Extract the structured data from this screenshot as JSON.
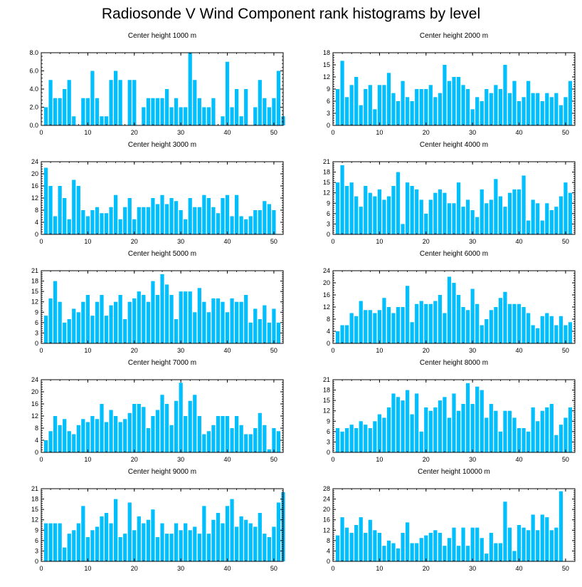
{
  "title": "Radiosonde V Wind Component rank histograms by level",
  "bar_color": "#00bfff",
  "chart_data": [
    {
      "type": "bar",
      "title": "Center height 1000 m",
      "xlabel": "",
      "ylabel": "",
      "ylim": [
        0,
        8
      ],
      "yticks": [
        "0.0",
        "2.0",
        "4.0",
        "6.0",
        "8.0"
      ],
      "ytick_values": [
        0,
        2,
        4,
        6,
        8
      ],
      "xlim": [
        0,
        52
      ],
      "xticks": [
        "0",
        "10",
        "20",
        "30",
        "40",
        "50"
      ],
      "xtick_values": [
        0,
        10,
        20,
        30,
        40,
        50
      ],
      "values": [
        2,
        5,
        3,
        3,
        4,
        5,
        1,
        0,
        3,
        3,
        6,
        3,
        1,
        1,
        5,
        6,
        5,
        0,
        5,
        5,
        0,
        2,
        3,
        3,
        3,
        3,
        4,
        2,
        3,
        2,
        2,
        8,
        5,
        3,
        2,
        2,
        3,
        0,
        1,
        7,
        2,
        4,
        1,
        4,
        0,
        2,
        5,
        3,
        2,
        3,
        6,
        1
      ]
    },
    {
      "type": "bar",
      "title": "Center height 2000 m",
      "xlabel": "",
      "ylabel": "",
      "ylim": [
        0,
        18
      ],
      "yticks": [
        "0",
        "3",
        "6",
        "9",
        "12",
        "15",
        "18"
      ],
      "ytick_values": [
        0,
        3,
        6,
        9,
        12,
        15,
        18
      ],
      "xlim": [
        0,
        52
      ],
      "xticks": [
        "0",
        "10",
        "20",
        "30",
        "40",
        "50"
      ],
      "xtick_values": [
        0,
        10,
        20,
        30,
        40,
        50
      ],
      "values": [
        9,
        16,
        7,
        10,
        12,
        5,
        9,
        10,
        4,
        10,
        10,
        13,
        8,
        6,
        11,
        7,
        6,
        9,
        9,
        9,
        10,
        7,
        8,
        15,
        11,
        12,
        12,
        10,
        9,
        4,
        7,
        6,
        9,
        8,
        10,
        9,
        15,
        8,
        11,
        6,
        7,
        11,
        8,
        8,
        6,
        8,
        7,
        8,
        5,
        7,
        11
      ]
    },
    {
      "type": "bar",
      "title": "Center height 3000 m",
      "xlabel": "",
      "ylabel": "",
      "ylim": [
        0,
        24
      ],
      "yticks": [
        "0",
        "4",
        "8",
        "12",
        "16",
        "20",
        "24"
      ],
      "ytick_values": [
        0,
        4,
        8,
        12,
        16,
        20,
        24
      ],
      "xlim": [
        0,
        52
      ],
      "xticks": [
        "0",
        "10",
        "20",
        "30",
        "40",
        "50"
      ],
      "xtick_values": [
        0,
        10,
        20,
        30,
        40,
        50
      ],
      "values": [
        22,
        16,
        6,
        16,
        12,
        5,
        18,
        16,
        8,
        6,
        8,
        9,
        7,
        7,
        9,
        13,
        5,
        9,
        12,
        5,
        9,
        9,
        9,
        12,
        10,
        13,
        10,
        12,
        11,
        8,
        5,
        12,
        9,
        9,
        13,
        12,
        9,
        7,
        12,
        13,
        6,
        13,
        6,
        5,
        6,
        8,
        8,
        11,
        10,
        8
      ]
    },
    {
      "type": "bar",
      "title": "Center height 4000 m",
      "xlabel": "",
      "ylabel": "",
      "ylim": [
        0,
        21
      ],
      "yticks": [
        "0",
        "3",
        "6",
        "9",
        "12",
        "15",
        "18",
        "21"
      ],
      "ytick_values": [
        0,
        3,
        6,
        9,
        12,
        15,
        18,
        21
      ],
      "xlim": [
        0,
        52
      ],
      "xticks": [
        "0",
        "10",
        "20",
        "30",
        "40",
        "50"
      ],
      "xtick_values": [
        0,
        10,
        20,
        30,
        40,
        50
      ],
      "values": [
        15,
        20,
        14,
        15,
        11,
        8,
        14,
        12,
        11,
        13,
        10,
        11,
        14,
        18,
        3,
        15,
        14,
        13,
        10,
        6,
        10,
        12,
        13,
        12,
        9,
        9,
        15,
        8,
        10,
        7,
        5,
        13,
        9,
        10,
        16,
        11,
        8,
        12,
        13,
        13,
        17,
        4,
        10,
        9,
        4,
        9,
        7,
        8,
        11,
        15,
        12
      ]
    },
    {
      "type": "bar",
      "title": "Center height 5000 m",
      "xlabel": "",
      "ylabel": "",
      "ylim": [
        0,
        21
      ],
      "yticks": [
        "0",
        "3",
        "6",
        "9",
        "12",
        "15",
        "18",
        "21"
      ],
      "ytick_values": [
        0,
        3,
        6,
        9,
        12,
        15,
        18,
        21
      ],
      "xlim": [
        0,
        52
      ],
      "xticks": [
        "0",
        "10",
        "20",
        "30",
        "40",
        "50"
      ],
      "xtick_values": [
        0,
        10,
        20,
        30,
        40,
        50
      ],
      "values": [
        8,
        13,
        18,
        12,
        6,
        7,
        10,
        9,
        12,
        14,
        8,
        12,
        14,
        8,
        11,
        12,
        14,
        7,
        12,
        13,
        15,
        14,
        12,
        18,
        14,
        20,
        17,
        14,
        7,
        15,
        15,
        15,
        9,
        16,
        12,
        9,
        13,
        13,
        12,
        9,
        13,
        12,
        12,
        14,
        6,
        10,
        7,
        11,
        6,
        10,
        6
      ]
    },
    {
      "type": "bar",
      "title": "Center height 6000 m",
      "xlabel": "",
      "ylabel": "",
      "ylim": [
        0,
        24
      ],
      "yticks": [
        "0",
        "4",
        "8",
        "12",
        "16",
        "20",
        "24"
      ],
      "ytick_values": [
        0,
        4,
        8,
        12,
        16,
        20,
        24
      ],
      "xlim": [
        0,
        52
      ],
      "xticks": [
        "0",
        "10",
        "20",
        "30",
        "40",
        "50"
      ],
      "xtick_values": [
        0,
        10,
        20,
        30,
        40,
        50
      ],
      "values": [
        4,
        6,
        6,
        10,
        9,
        14,
        11,
        11,
        10,
        11,
        15,
        12,
        10,
        12,
        12,
        19,
        7,
        13,
        14,
        13,
        13,
        14,
        16,
        10,
        22,
        20,
        16,
        12,
        11,
        18,
        13,
        6,
        8,
        11,
        12,
        15,
        17,
        13,
        13,
        13,
        12,
        10,
        6,
        5,
        9,
        10,
        9,
        6,
        9,
        6,
        7
      ]
    },
    {
      "type": "bar",
      "title": "Center height 7000 m",
      "xlabel": "",
      "ylabel": "",
      "ylim": [
        0,
        24
      ],
      "yticks": [
        "0",
        "4",
        "8",
        "12",
        "16",
        "20",
        "24"
      ],
      "ytick_values": [
        0,
        4,
        8,
        12,
        16,
        20,
        24
      ],
      "xlim": [
        0,
        52
      ],
      "xticks": [
        "0",
        "10",
        "20",
        "30",
        "40",
        "50"
      ],
      "xtick_values": [
        0,
        10,
        20,
        30,
        40,
        50
      ],
      "values": [
        4,
        7,
        12,
        9,
        11,
        7,
        6,
        9,
        11,
        10,
        12,
        11,
        16,
        10,
        14,
        12,
        10,
        11,
        13,
        16,
        16,
        15,
        8,
        12,
        14,
        19,
        16,
        9,
        17,
        23,
        12,
        17,
        19,
        12,
        6,
        7,
        9,
        12,
        12,
        12,
        8,
        12,
        9,
        6,
        6,
        8,
        13,
        9,
        1,
        8,
        7
      ]
    },
    {
      "type": "bar",
      "title": "Center height 8000 m",
      "xlabel": "",
      "ylabel": "",
      "ylim": [
        0,
        21
      ],
      "yticks": [
        "0",
        "3",
        "6",
        "9",
        "12",
        "15",
        "18",
        "21"
      ],
      "ytick_values": [
        0,
        3,
        6,
        9,
        12,
        15,
        18,
        21
      ],
      "xlim": [
        0,
        52
      ],
      "xticks": [
        "0",
        "10",
        "20",
        "30",
        "40",
        "50"
      ],
      "xtick_values": [
        0,
        10,
        20,
        30,
        40,
        50
      ],
      "values": [
        7,
        6,
        7,
        8,
        7,
        9,
        8,
        7,
        9,
        11,
        10,
        13,
        17,
        16,
        15,
        18,
        11,
        17,
        6,
        13,
        12,
        13,
        15,
        16,
        10,
        17,
        12,
        14,
        20,
        14,
        19,
        18,
        10,
        14,
        12,
        6,
        12,
        12,
        10,
        7,
        7,
        6,
        13,
        9,
        12,
        13,
        14,
        5,
        8,
        10,
        13
      ]
    },
    {
      "type": "bar",
      "title": "Center height 9000 m",
      "xlabel": "",
      "ylabel": "",
      "ylim": [
        0,
        21
      ],
      "yticks": [
        "0",
        "3",
        "6",
        "9",
        "12",
        "15",
        "18",
        "21"
      ],
      "ytick_values": [
        0,
        3,
        6,
        9,
        12,
        15,
        18,
        21
      ],
      "xlim": [
        0,
        52
      ],
      "xticks": [
        "0",
        "10",
        "20",
        "30",
        "40",
        "50"
      ],
      "xtick_values": [
        0,
        10,
        20,
        30,
        40,
        50
      ],
      "values": [
        11,
        11,
        11,
        11,
        4,
        8,
        9,
        11,
        16,
        7,
        9,
        10,
        13,
        14,
        11,
        18,
        7,
        8,
        17,
        9,
        13,
        11,
        12,
        15,
        7,
        11,
        8,
        8,
        11,
        9,
        11,
        9,
        10,
        8,
        16,
        8,
        12,
        14,
        11,
        16,
        18,
        10,
        13,
        12,
        11,
        10,
        14,
        8,
        7,
        10,
        17,
        20
      ]
    },
    {
      "type": "bar",
      "title": "Center height 10000 m",
      "xlabel": "",
      "ylabel": "",
      "ylim": [
        0,
        28
      ],
      "yticks": [
        "0",
        "4",
        "8",
        "12",
        "16",
        "20",
        "24",
        "28"
      ],
      "ytick_values": [
        0,
        4,
        8,
        12,
        16,
        20,
        24,
        28
      ],
      "xlim": [
        0,
        52
      ],
      "xticks": [
        "0",
        "10",
        "20",
        "30",
        "40",
        "50"
      ],
      "xtick_values": [
        0,
        10,
        20,
        30,
        40,
        50
      ],
      "values": [
        10,
        17,
        13,
        11,
        14,
        17,
        11,
        16,
        12,
        11,
        6,
        8,
        7,
        5,
        11,
        15,
        7,
        7,
        9,
        10,
        11,
        12,
        11,
        6,
        9,
        13,
        6,
        13,
        6,
        13,
        13,
        9,
        3,
        11,
        7,
        7,
        23,
        13,
        4,
        14,
        13,
        12,
        18,
        12,
        18,
        17,
        12,
        13,
        27
      ]
    }
  ]
}
